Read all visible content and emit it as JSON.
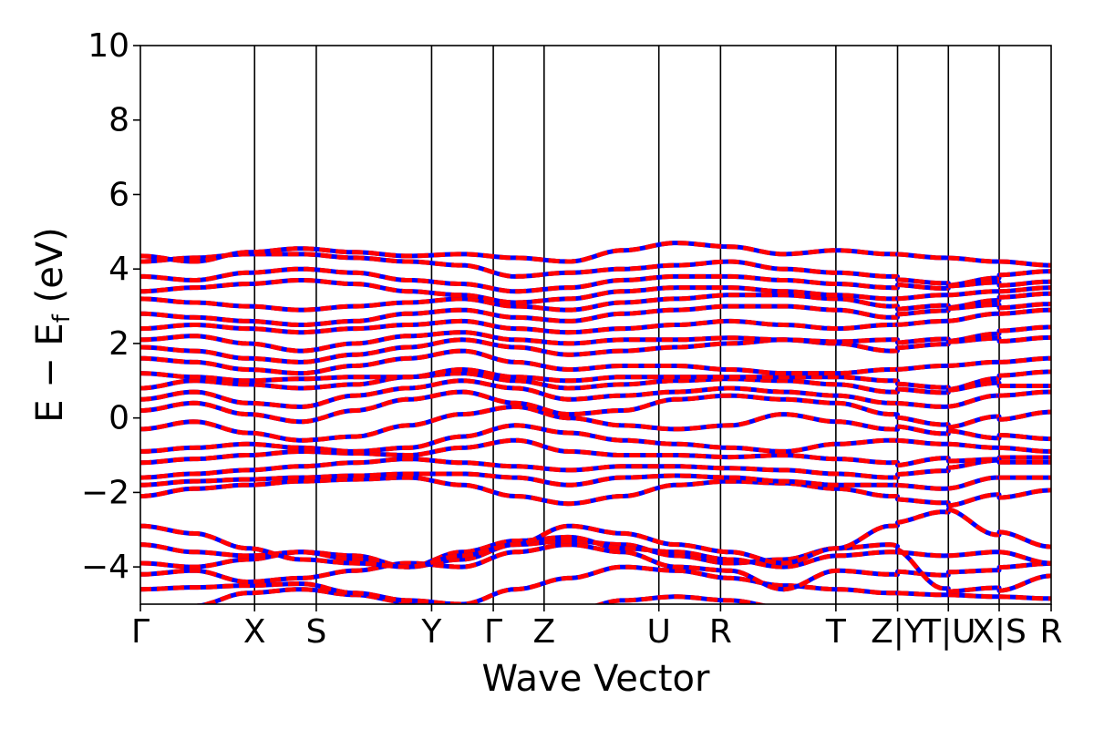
{
  "chart_data": {
    "type": "line",
    "title": "",
    "xlabel": "Wave Vector",
    "ylabel": {
      "prefix": "E − E",
      "subscript": "f",
      "suffix": " (eV)"
    },
    "ylim": [
      -5,
      10
    ],
    "yticks": [
      {
        "value": 10,
        "label": "10"
      },
      {
        "value": 8,
        "label": "8"
      },
      {
        "value": 6,
        "label": "6"
      },
      {
        "value": 4,
        "label": "4"
      },
      {
        "value": 2,
        "label": "2"
      },
      {
        "value": 0,
        "label": "0"
      },
      {
        "value": -2,
        "label": "−2"
      },
      {
        "value": -4,
        "label": "−4"
      }
    ],
    "xlim": [
      0,
      15.95
    ],
    "kpoints": [
      {
        "x": 0.0,
        "label": "Γ"
      },
      {
        "x": 2.0,
        "label": "X"
      },
      {
        "x": 3.08,
        "label": "S"
      },
      {
        "x": 5.1,
        "label": "Y"
      },
      {
        "x": 6.18,
        "label": "Γ"
      },
      {
        "x": 7.07,
        "label": "Z"
      },
      {
        "x": 9.08,
        "label": "U"
      },
      {
        "x": 10.16,
        "label": "R"
      },
      {
        "x": 12.18,
        "label": "T"
      },
      {
        "x": 13.26,
        "label": "Z|Y"
      },
      {
        "x": 14.15,
        "label": "T|U"
      },
      {
        "x": 15.04,
        "label": "X|S"
      },
      {
        "x": 15.95,
        "label": "R"
      }
    ],
    "band_segments": [
      {
        "from": 0.0,
        "to": 13.26
      },
      {
        "from": 13.26,
        "to": 14.15
      },
      {
        "from": 14.15,
        "to": 15.04
      },
      {
        "from": 15.04,
        "to": 15.95
      }
    ],
    "series_colors": {
      "primary": "#0000ff",
      "overlay": "#ff0000"
    },
    "bands": [
      {
        "y": [
          -5.3,
          -5.05,
          -4.7,
          -4.6,
          -4.75,
          -4.95,
          -5.2,
          -5.4,
          -5.2,
          -4.9,
          -4.8,
          -4.9,
          -5.1,
          -5.2,
          -5.3,
          -5.4,
          -5.5,
          -5.5
        ]
      },
      {
        "y": [
          -4.6,
          -4.55,
          -4.5,
          -4.45,
          -4.7,
          -4.9,
          -5.0,
          -4.6,
          -4.3,
          -4.0,
          -4.1,
          -4.3,
          -4.5,
          -4.6,
          -4.7,
          -4.75,
          -4.8,
          -4.85
        ]
      },
      {
        "y": [
          -4.2,
          -4.1,
          -4.4,
          -4.3,
          -4.1,
          -3.9,
          -4.0,
          -3.6,
          -3.4,
          -3.6,
          -4.0,
          -4.1,
          -4.6,
          -4.1,
          -4.2,
          -4.3,
          -4.25,
          -4.15
        ]
      },
      {
        "y": [
          -3.9,
          -4.0,
          -3.8,
          -3.6,
          -3.7,
          -4.0,
          -3.8,
          -3.4,
          -3.3,
          -3.4,
          -3.7,
          -3.9,
          -3.8,
          -3.5,
          -3.4,
          -4.5,
          -4.4,
          -4.0
        ]
      },
      {
        "y": [
          -3.4,
          -3.6,
          -3.7,
          -3.6,
          -3.8,
          -4.0,
          -3.6,
          -3.3,
          -3.2,
          -3.5,
          -3.6,
          -3.8,
          -4.0,
          -3.7,
          -3.6,
          -3.7,
          -3.6,
          -3.9
        ]
      },
      {
        "y": [
          -2.9,
          -3.1,
          -3.5,
          -3.8,
          -3.9,
          -4.0,
          -3.7,
          -3.4,
          -2.9,
          -3.1,
          -3.4,
          -3.6,
          -3.9,
          -3.5,
          -2.9,
          -2.6,
          -3.3,
          -3.7
        ]
      },
      {
        "y": [
          -2.1,
          -1.9,
          -1.8,
          -1.7,
          -1.65,
          -1.6,
          -1.8,
          -2.1,
          -2.3,
          -2.1,
          -1.8,
          -1.7,
          -1.75,
          -1.9,
          -2.1,
          -2.2,
          -1.9,
          -1.7
        ]
      },
      {
        "y": [
          -1.8,
          -1.7,
          -1.65,
          -1.6,
          -1.55,
          -1.5,
          -1.5,
          -1.6,
          -1.8,
          -1.6,
          -1.55,
          -1.6,
          -1.7,
          -1.8,
          -1.8,
          -1.9,
          -1.6,
          -1.6
        ]
      },
      {
        "y": [
          -1.6,
          -1.5,
          -1.4,
          -1.3,
          -1.2,
          -1.1,
          -1.2,
          -1.3,
          -1.4,
          -1.3,
          -1.3,
          -1.35,
          -1.4,
          -1.5,
          -1.6,
          -1.5,
          -1.3,
          -1.3
        ]
      },
      {
        "y": [
          -1.2,
          -1.1,
          -1.0,
          -0.9,
          -0.95,
          -1.0,
          -0.8,
          -0.6,
          -0.9,
          -1.0,
          -1.0,
          -1.05,
          -1.0,
          -1.1,
          -1.2,
          -1.0,
          -0.95,
          -0.95
        ]
      },
      {
        "y": [
          -0.9,
          -0.8,
          -0.7,
          -0.8,
          -0.9,
          -0.8,
          -0.5,
          -0.2,
          -0.4,
          -0.6,
          -0.7,
          -0.8,
          -0.9,
          -0.7,
          -0.6,
          -0.7,
          -0.8,
          -0.9
        ]
      },
      {
        "y": [
          -0.3,
          -0.1,
          -0.4,
          -0.6,
          -0.5,
          -0.2,
          0.1,
          0.3,
          0.0,
          -0.2,
          -0.3,
          -0.2,
          0.1,
          -0.1,
          -0.3,
          -0.5,
          -0.7,
          -0.8
        ]
      },
      {
        "y": [
          0.2,
          0.4,
          0.1,
          -0.1,
          0.2,
          0.5,
          0.7,
          0.4,
          0.1,
          0.2,
          0.5,
          0.6,
          0.5,
          0.4,
          0.1,
          -0.1,
          0.2,
          0.4
        ]
      },
      {
        "y": [
          0.5,
          0.7,
          0.4,
          0.3,
          0.6,
          0.8,
          1.0,
          0.8,
          0.5,
          0.6,
          0.7,
          0.8,
          0.7,
          0.6,
          0.4,
          0.3,
          0.6,
          0.7
        ]
      },
      {
        "y": [
          0.8,
          1.0,
          0.9,
          0.8,
          0.9,
          1.1,
          1.2,
          1.0,
          0.8,
          0.9,
          1.0,
          1.05,
          1.0,
          0.9,
          0.7,
          0.6,
          0.9,
          1.0
        ]
      },
      {
        "y": [
          1.2,
          1.1,
          1.0,
          1.05,
          1.1,
          1.1,
          1.3,
          1.1,
          1.0,
          1.1,
          1.1,
          1.1,
          1.1,
          1.1,
          1.0,
          0.9,
          1.1,
          1.1
        ]
      },
      {
        "y": [
          1.6,
          1.5,
          1.3,
          1.2,
          1.4,
          1.6,
          1.8,
          1.5,
          1.3,
          1.4,
          1.4,
          1.3,
          1.2,
          1.2,
          1.3,
          1.4,
          1.5,
          1.6
        ]
      },
      {
        "y": [
          1.9,
          1.8,
          1.6,
          1.5,
          1.7,
          1.9,
          2.1,
          1.9,
          1.7,
          1.8,
          1.9,
          2.0,
          2.1,
          2.0,
          1.8,
          1.9,
          2.1,
          2.2
        ]
      },
      {
        "y": [
          2.1,
          2.2,
          2.0,
          1.8,
          2.0,
          2.2,
          2.3,
          2.1,
          2.0,
          2.1,
          2.1,
          2.15,
          2.1,
          2.05,
          2.1,
          2.2,
          2.3,
          2.4
        ]
      },
      {
        "y": [
          2.4,
          2.5,
          2.4,
          2.3,
          2.4,
          2.5,
          2.6,
          2.4,
          2.3,
          2.4,
          2.5,
          2.6,
          2.5,
          2.4,
          2.5,
          2.6,
          2.8,
          2.9
        ]
      },
      {
        "y": [
          2.8,
          2.7,
          2.6,
          2.5,
          2.6,
          2.8,
          2.9,
          2.7,
          2.6,
          2.8,
          2.9,
          3.0,
          3.0,
          2.9,
          2.7,
          2.8,
          3.0,
          3.1
        ]
      },
      {
        "y": [
          3.2,
          3.1,
          3.0,
          2.9,
          3.0,
          3.1,
          3.2,
          3.0,
          2.9,
          3.1,
          3.2,
          3.3,
          3.3,
          3.2,
          3.0,
          3.1,
          3.2,
          3.3
        ]
      },
      {
        "y": [
          3.4,
          3.5,
          3.6,
          3.7,
          3.6,
          3.4,
          3.3,
          3.1,
          3.2,
          3.4,
          3.5,
          3.5,
          3.4,
          3.3,
          3.2,
          3.3,
          3.4,
          3.5
        ]
      },
      {
        "y": [
          3.8,
          3.7,
          3.9,
          4.0,
          3.9,
          3.7,
          3.6,
          3.4,
          3.5,
          3.7,
          3.8,
          3.8,
          3.7,
          3.6,
          3.5,
          3.4,
          3.6,
          3.7
        ]
      },
      {
        "y": [
          4.2,
          4.3,
          4.4,
          4.4,
          4.3,
          4.2,
          4.1,
          3.8,
          3.9,
          4.0,
          4.1,
          4.2,
          4.0,
          3.9,
          3.8,
          3.7,
          3.8,
          3.9
        ]
      },
      {
        "y": [
          4.35,
          4.2,
          4.45,
          4.55,
          4.45,
          4.35,
          4.4,
          4.3,
          4.2,
          4.5,
          4.7,
          4.6,
          4.4,
          4.5,
          4.4,
          4.3,
          4.2,
          4.1
        ]
      }
    ]
  }
}
